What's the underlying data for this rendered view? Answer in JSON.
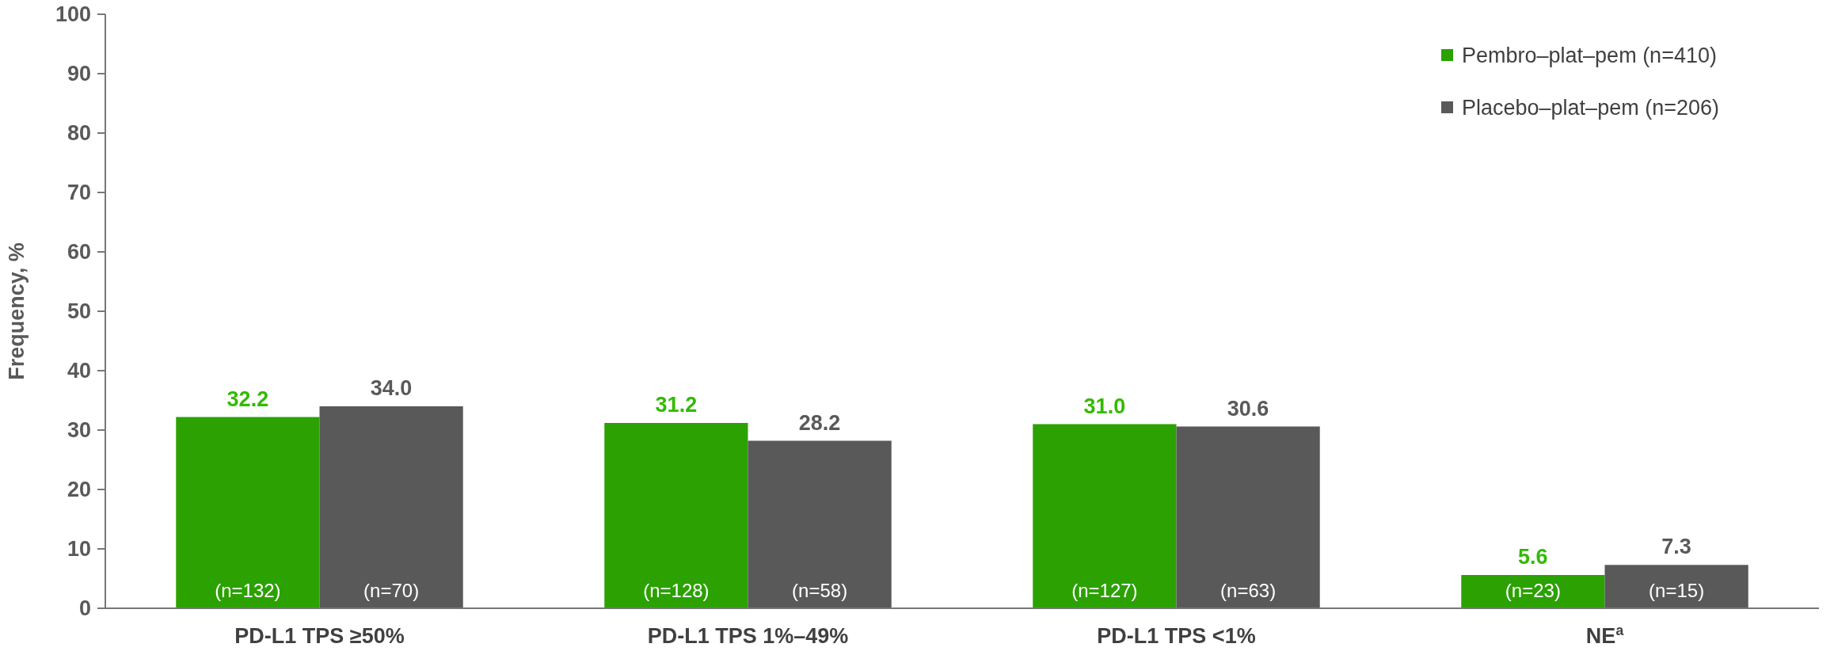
{
  "chart_data": {
    "type": "bar",
    "ylabel": "Frequency, %",
    "categories": [
      "PD-L1 TPS ≥50%",
      "PD-L1 TPS 1%–49%",
      "PD-L1 TPS <1%",
      "NE$^{a}$"
    ],
    "series": [
      {
        "name": "Pembro–plat–pem (n=410)",
        "color": "#2ca102",
        "values": [
          32.2,
          31.2,
          31.0,
          5.6
        ],
        "value_labels": [
          "32.2",
          "31.2",
          "31.0",
          "5.6"
        ]
      },
      {
        "name": "Placebo–plat–pem (n=206)",
        "color": "#595959",
        "values": [
          34.0,
          28.2,
          30.6,
          7.3
        ],
        "value_labels": [
          "34.0",
          "28.2",
          "30.6",
          "7.3"
        ]
      }
    ],
    "ylim": [
      0,
      100
    ],
    "yticks": [
      0,
      10,
      20,
      30,
      40,
      50,
      60,
      70,
      80,
      90,
      100
    ],
    "legend": "top right",
    "grid": false,
    "annotations": [
      "(n=132)",
      "(n=70)",
      "(n=128)",
      "(n=58)",
      "(n=127)",
      "(n=63)",
      "(n=23)",
      "(n=15)"
    ]
  }
}
